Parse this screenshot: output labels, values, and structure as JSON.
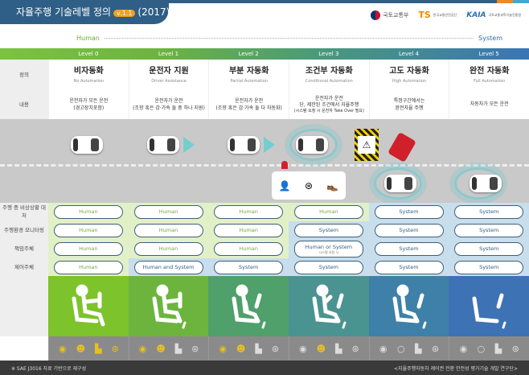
{
  "header": {
    "title": "자율주행 기술레벨 정의",
    "version": "v.1.1",
    "year": "(2017)",
    "logos": [
      "국토교통부",
      "TS 한국교통안전공단",
      "KAIA 국토교통과학기술진흥원"
    ]
  },
  "scale": {
    "left": "Human",
    "right": "System"
  },
  "levels": [
    "Level 0",
    "Level 1",
    "Level 2",
    "Level 3",
    "Level 4",
    "Level 5"
  ],
  "row_labels": {
    "definition": "정의",
    "content": "내용",
    "fallback": "주행 중 비상상황 대처",
    "monitoring": "주행환경 모니터링",
    "responsibility": "책임주체",
    "control": "제어주체"
  },
  "definitions": [
    {
      "ko": "비자동화",
      "en": "No Automation"
    },
    {
      "ko": "운전자 지원",
      "en": "Driver Assistance"
    },
    {
      "ko": "부분 자동화",
      "en": "Partial Automation"
    },
    {
      "ko": "조건부 자동화",
      "en": "Conditional Automation"
    },
    {
      "ko": "고도 자동화",
      "en": "High Automation"
    },
    {
      "ko": "완전 자동화",
      "en": "Full Automation"
    }
  ],
  "contents": [
    [
      "운전자가 모든 운전",
      "(경고장치포함)"
    ],
    [
      "운전자가 운전",
      "(조향 혹은 감·가속 둘 중 하나 지원)"
    ],
    [
      "운전자가 운전",
      "(조향 혹은 감·가속 둘 다 자동화)"
    ],
    [
      "운전자가 운전",
      "단, 제한된 조건에서 자율주행",
      "(시스템 요청 시 운전자 Take Over 필요)"
    ],
    [
      "특정구간에서는",
      "완전자율 주행"
    ],
    [
      "자동차가 모든 운전"
    ]
  ],
  "matrix": {
    "fallback": [
      "Human",
      "Human",
      "Human",
      "Human",
      "System",
      "System"
    ],
    "monitoring": [
      "Human",
      "Human",
      "Human",
      "System",
      "System",
      "System"
    ],
    "responsibility": [
      "Human",
      "Human",
      "Human",
      "Human or System",
      "System",
      "System"
    ],
    "responsibility_note": "시스템 요청 시",
    "control": [
      "Human",
      "Human and System",
      "System",
      "System",
      "System",
      "System"
    ]
  },
  "colors": {
    "human": "#e2f0c8",
    "system": "#c8deec",
    "figures": [
      "#7dc32b",
      "#6db43f",
      "#4fa06a",
      "#4a9390",
      "#3e80a8",
      "#3d72b4"
    ]
  },
  "sensory_icons": [
    "eye-icon",
    "brain-icon",
    "foot-icon",
    "steering-wheel-icon"
  ],
  "footer": {
    "left": "※ SAE J3016 자료 기반으로 재구성",
    "right": "<자율주행자동차 제어권 전환 안전성 평가기술 개발 연구단>"
  }
}
